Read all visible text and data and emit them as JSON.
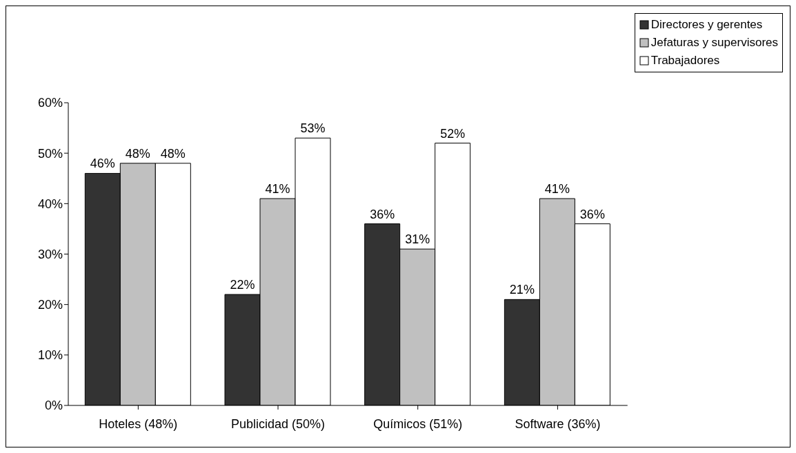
{
  "chart_data": {
    "type": "bar",
    "categories": [
      "Hoteles (48%)",
      "Publicidad (50%)",
      "Químicos (51%)",
      "Software (36%)"
    ],
    "series": [
      {
        "name": "Directores y gerentes",
        "color": "#333333",
        "values": [
          46,
          22,
          36,
          21
        ],
        "value_labels": [
          "46%",
          "22%",
          "36%",
          "21%"
        ]
      },
      {
        "name": "Jefaturas y supervisores",
        "color": "#c0c0c0",
        "values": [
          48,
          41,
          31,
          41
        ],
        "value_labels": [
          "48%",
          "41%",
          "31%",
          "41%"
        ]
      },
      {
        "name": "Trabajadores",
        "color": "#ffffff",
        "values": [
          48,
          53,
          52,
          36
        ],
        "value_labels": [
          "48%",
          "53%",
          "52%",
          "36%"
        ]
      }
    ],
    "ylim": [
      0,
      60
    ],
    "yticks": [
      {
        "value": 0,
        "label": "0%"
      },
      {
        "value": 10,
        "label": "10%"
      },
      {
        "value": 20,
        "label": "20%"
      },
      {
        "value": 30,
        "label": "30%"
      },
      {
        "value": 40,
        "label": "40%"
      },
      {
        "value": 50,
        "label": "50%"
      },
      {
        "value": 60,
        "label": "60%"
      }
    ],
    "grid": false,
    "legend": "top right"
  }
}
